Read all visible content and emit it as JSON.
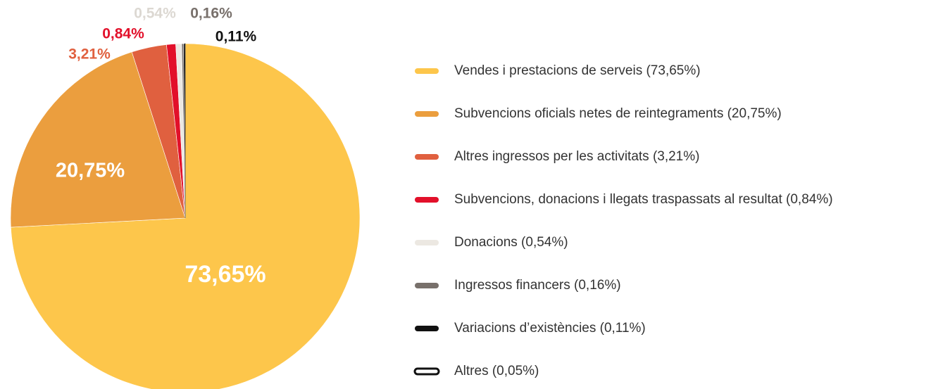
{
  "chart_data": {
    "type": "pie",
    "categories": [
      "Vendes i prestacions de serveis (73,65%)",
      "Subvencions oficials netes de reintegraments (20,75%)",
      "Altres ingressos per les activitats (3,21%)",
      "Subvencions, donacions i llegats traspassats al resultat (0,84%)",
      "Donacions (0,54%)",
      "Ingressos financers (0,16%)",
      "Variacions d’existències (0,11%)",
      "Altres (0,05%)"
    ],
    "values": [
      73.65,
      20.75,
      3.21,
      0.84,
      0.54,
      0.16,
      0.11,
      0.05
    ],
    "value_labels": [
      "73,65%",
      "20,75%",
      "3,21%",
      "0,84%",
      "0,54%",
      "0,16%",
      "0,11%",
      null
    ],
    "colors": [
      "#fdc64b",
      "#eb9e3e",
      "#e0603f",
      "#e2102a",
      "#ece8e2",
      "#78706b",
      "#111111",
      "#ffffff"
    ],
    "start_angle": 0,
    "direction": "clockwise"
  }
}
